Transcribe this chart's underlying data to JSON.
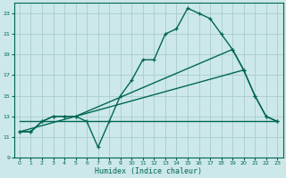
{
  "bg_color": "#cce8e8",
  "grid_color": "#aacccc",
  "line_color": "#006655",
  "xlabel": "Humidex (Indice chaleur)",
  "ylim": [
    9,
    24
  ],
  "xlim": [
    -0.5,
    23.5
  ],
  "yticks": [
    9,
    11,
    13,
    15,
    17,
    19,
    21,
    23
  ],
  "xticks": [
    0,
    1,
    2,
    3,
    4,
    5,
    6,
    7,
    8,
    9,
    10,
    11,
    12,
    13,
    14,
    15,
    16,
    17,
    18,
    19,
    20,
    21,
    22,
    23
  ],
  "line1_x": [
    0,
    1,
    2,
    3,
    4,
    5,
    6,
    7,
    8,
    9,
    10,
    11,
    12,
    13,
    14,
    15,
    16,
    17,
    18,
    19,
    20,
    21,
    22,
    23
  ],
  "line1_y": [
    11.5,
    11.5,
    12.5,
    13.0,
    13.0,
    13.0,
    12.5,
    10.0,
    12.5,
    15.0,
    16.5,
    18.5,
    18.5,
    21.0,
    21.5,
    23.5,
    23.0,
    22.5,
    21.0,
    19.5,
    17.5,
    15.0,
    13.0,
    12.5
  ],
  "line2_x": [
    0,
    1,
    2,
    3,
    4,
    5,
    19,
    20,
    21,
    22,
    23
  ],
  "line2_y": [
    11.5,
    11.5,
    12.5,
    13.0,
    13.0,
    13.0,
    19.5,
    17.5,
    15.0,
    13.0,
    12.5
  ],
  "line3_x": [
    0,
    20
  ],
  "line3_y": [
    11.5,
    17.5
  ],
  "line4_x": [
    0,
    23
  ],
  "line4_y": [
    12.5,
    12.5
  ]
}
